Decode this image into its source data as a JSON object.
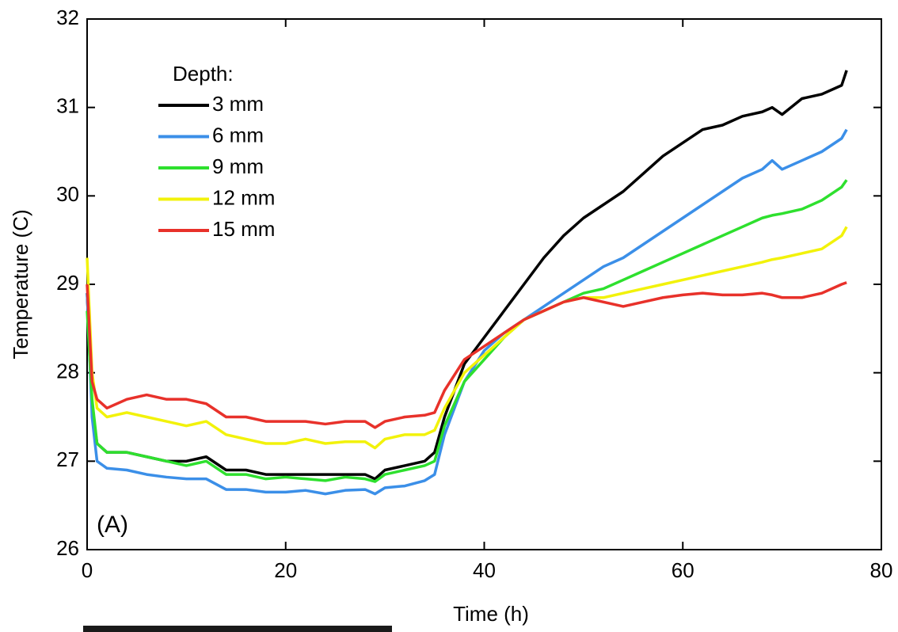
{
  "chart_data": {
    "type": "line",
    "xlabel": "Time (h)",
    "ylabel": "Temperature (C)",
    "annotation": "(A)",
    "legend_title": "Depth:",
    "legend": "upper left",
    "xlim": [
      0,
      80
    ],
    "ylim": [
      26,
      32
    ],
    "xticks": [
      0,
      20,
      40,
      60,
      80
    ],
    "yticks": [
      26,
      27,
      28,
      29,
      30,
      31,
      32
    ],
    "x": [
      0,
      0.5,
      1,
      2,
      4,
      6,
      8,
      10,
      12,
      14,
      16,
      18,
      20,
      22,
      24,
      26,
      28,
      29,
      30,
      32,
      34,
      35,
      36,
      38,
      40,
      42,
      44,
      46,
      48,
      50,
      52,
      54,
      56,
      58,
      60,
      62,
      64,
      66,
      68,
      69,
      70,
      72,
      74,
      76,
      76.5
    ],
    "series": [
      {
        "name": "3 mm",
        "color": "#000000",
        "values": [
          28.9,
          27.6,
          27.2,
          27.1,
          27.1,
          27.05,
          27.0,
          27.0,
          27.05,
          26.9,
          26.9,
          26.85,
          26.85,
          26.85,
          26.85,
          26.85,
          26.85,
          26.8,
          26.9,
          26.95,
          27.0,
          27.1,
          27.5,
          28.1,
          28.4,
          28.7,
          29.0,
          29.3,
          29.55,
          29.75,
          29.9,
          30.05,
          30.25,
          30.45,
          30.6,
          30.75,
          30.8,
          30.9,
          30.95,
          31.0,
          30.92,
          31.1,
          31.15,
          31.25,
          31.42
        ]
      },
      {
        "name": "6 mm",
        "color": "#3b8fe8",
        "values": [
          28.9,
          27.5,
          27.0,
          26.92,
          26.9,
          26.85,
          26.82,
          26.8,
          26.8,
          26.68,
          26.68,
          26.65,
          26.65,
          26.67,
          26.63,
          26.67,
          26.68,
          26.63,
          26.7,
          26.72,
          26.78,
          26.85,
          27.3,
          27.9,
          28.25,
          28.45,
          28.6,
          28.75,
          28.9,
          29.05,
          29.2,
          29.3,
          29.45,
          29.6,
          29.75,
          29.9,
          30.05,
          30.2,
          30.3,
          30.4,
          30.3,
          30.4,
          30.5,
          30.65,
          30.75
        ]
      },
      {
        "name": "9 mm",
        "color": "#2ee02e",
        "values": [
          28.7,
          27.7,
          27.2,
          27.1,
          27.1,
          27.05,
          27.0,
          26.95,
          27.0,
          26.85,
          26.85,
          26.8,
          26.82,
          26.8,
          26.78,
          26.82,
          26.8,
          26.77,
          26.85,
          26.9,
          26.95,
          27.0,
          27.4,
          27.9,
          28.15,
          28.4,
          28.6,
          28.7,
          28.8,
          28.9,
          28.95,
          29.05,
          29.15,
          29.25,
          29.35,
          29.45,
          29.55,
          29.65,
          29.75,
          29.78,
          29.8,
          29.85,
          29.95,
          30.1,
          30.18
        ]
      },
      {
        "name": "12 mm",
        "color": "#f2f20a",
        "values": [
          29.3,
          28.0,
          27.6,
          27.5,
          27.55,
          27.5,
          27.45,
          27.4,
          27.45,
          27.3,
          27.25,
          27.2,
          27.2,
          27.25,
          27.2,
          27.22,
          27.22,
          27.15,
          27.25,
          27.3,
          27.3,
          27.35,
          27.6,
          28.0,
          28.2,
          28.4,
          28.6,
          28.7,
          28.8,
          28.85,
          28.85,
          28.9,
          28.95,
          29.0,
          29.05,
          29.1,
          29.15,
          29.2,
          29.25,
          29.28,
          29.3,
          29.35,
          29.4,
          29.55,
          29.65
        ]
      },
      {
        "name": "15 mm",
        "color": "#e8312a",
        "values": [
          29.0,
          27.9,
          27.7,
          27.6,
          27.7,
          27.75,
          27.7,
          27.7,
          27.65,
          27.5,
          27.5,
          27.45,
          27.45,
          27.45,
          27.42,
          27.45,
          27.45,
          27.38,
          27.45,
          27.5,
          27.52,
          27.55,
          27.8,
          28.15,
          28.3,
          28.45,
          28.6,
          28.7,
          28.8,
          28.85,
          28.8,
          28.75,
          28.8,
          28.85,
          28.88,
          28.9,
          28.88,
          28.88,
          28.9,
          28.88,
          28.85,
          28.85,
          28.9,
          29.0,
          29.02
        ]
      }
    ]
  }
}
